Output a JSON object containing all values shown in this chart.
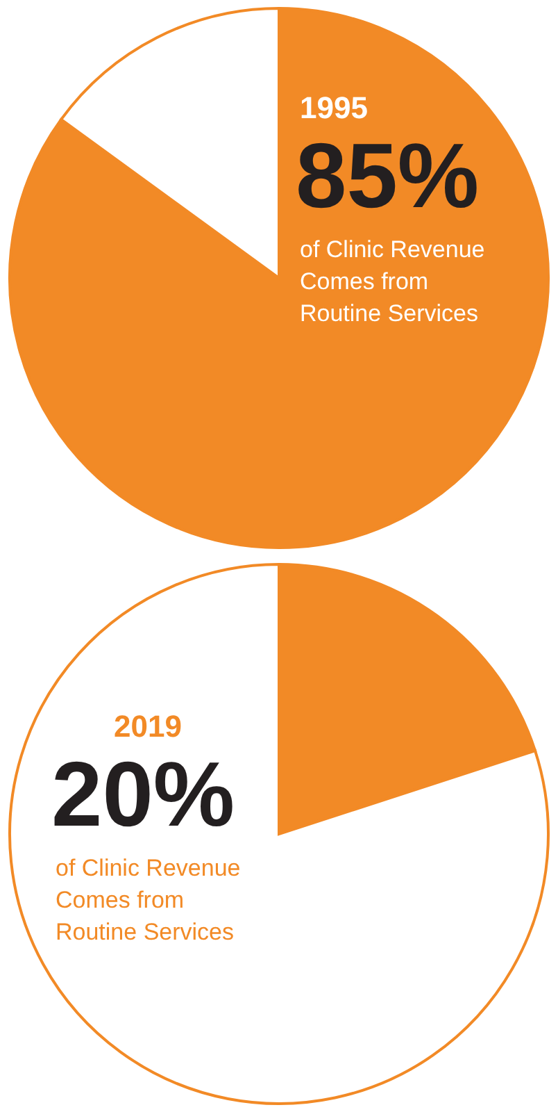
{
  "chart_data": [
    {
      "type": "pie",
      "title": "1995",
      "subtitle": "of Clinic Revenue Comes from Routine Services",
      "categories": [
        null,
        null
      ],
      "values": [
        85,
        15
      ],
      "colors": [
        "#f28a26",
        "#ffffff"
      ],
      "value_labels": [
        "85%",
        null
      ]
    },
    {
      "type": "pie",
      "title": "2019",
      "subtitle": "of Clinic Revenue Comes from Routine Services",
      "categories": [
        null,
        null
      ],
      "values": [
        20,
        80
      ],
      "colors": [
        "#f28a26",
        "#ffffff"
      ],
      "annotations": [
        "20%"
      ]
    }
  ]
}
